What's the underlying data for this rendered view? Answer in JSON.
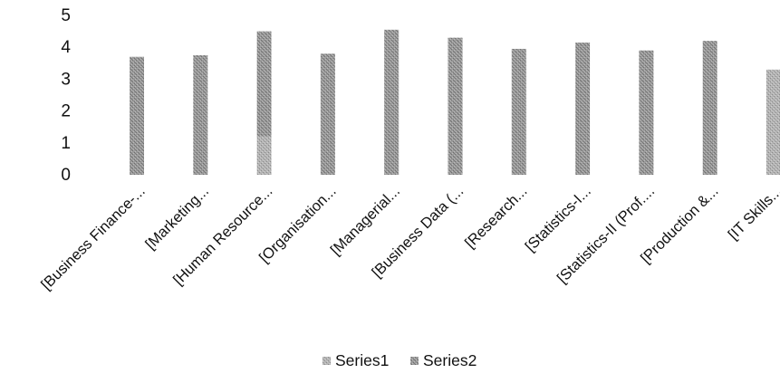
{
  "chart_data": {
    "type": "bar",
    "categories": [
      "[Business Finance-...",
      "[Marketing...",
      "[Human Resource...",
      "[Organisation...",
      "[Managerial...",
      "[Business Data (...",
      "[Research...",
      "[Statistics-I...",
      "[Statistics-II (Prof....",
      "[Production &...",
      "[IT Skills..."
    ],
    "series": [
      {
        "name": "Series1",
        "color": "#a8a8a8",
        "values": [
          0,
          0,
          1.2,
          0,
          0,
          0,
          0,
          0,
          0,
          0,
          3.3
        ]
      },
      {
        "name": "Series2",
        "color": "#8c8c8c",
        "values": [
          3.7,
          3.75,
          3.3,
          3.8,
          4.55,
          4.3,
          3.95,
          4.15,
          3.9,
          4.2,
          0
        ]
      }
    ],
    "ylim": [
      0,
      5
    ],
    "yticks": [
      0,
      1,
      2,
      3,
      4,
      5
    ],
    "stacked": true,
    "grid": false,
    "legend_position": "bottom"
  }
}
